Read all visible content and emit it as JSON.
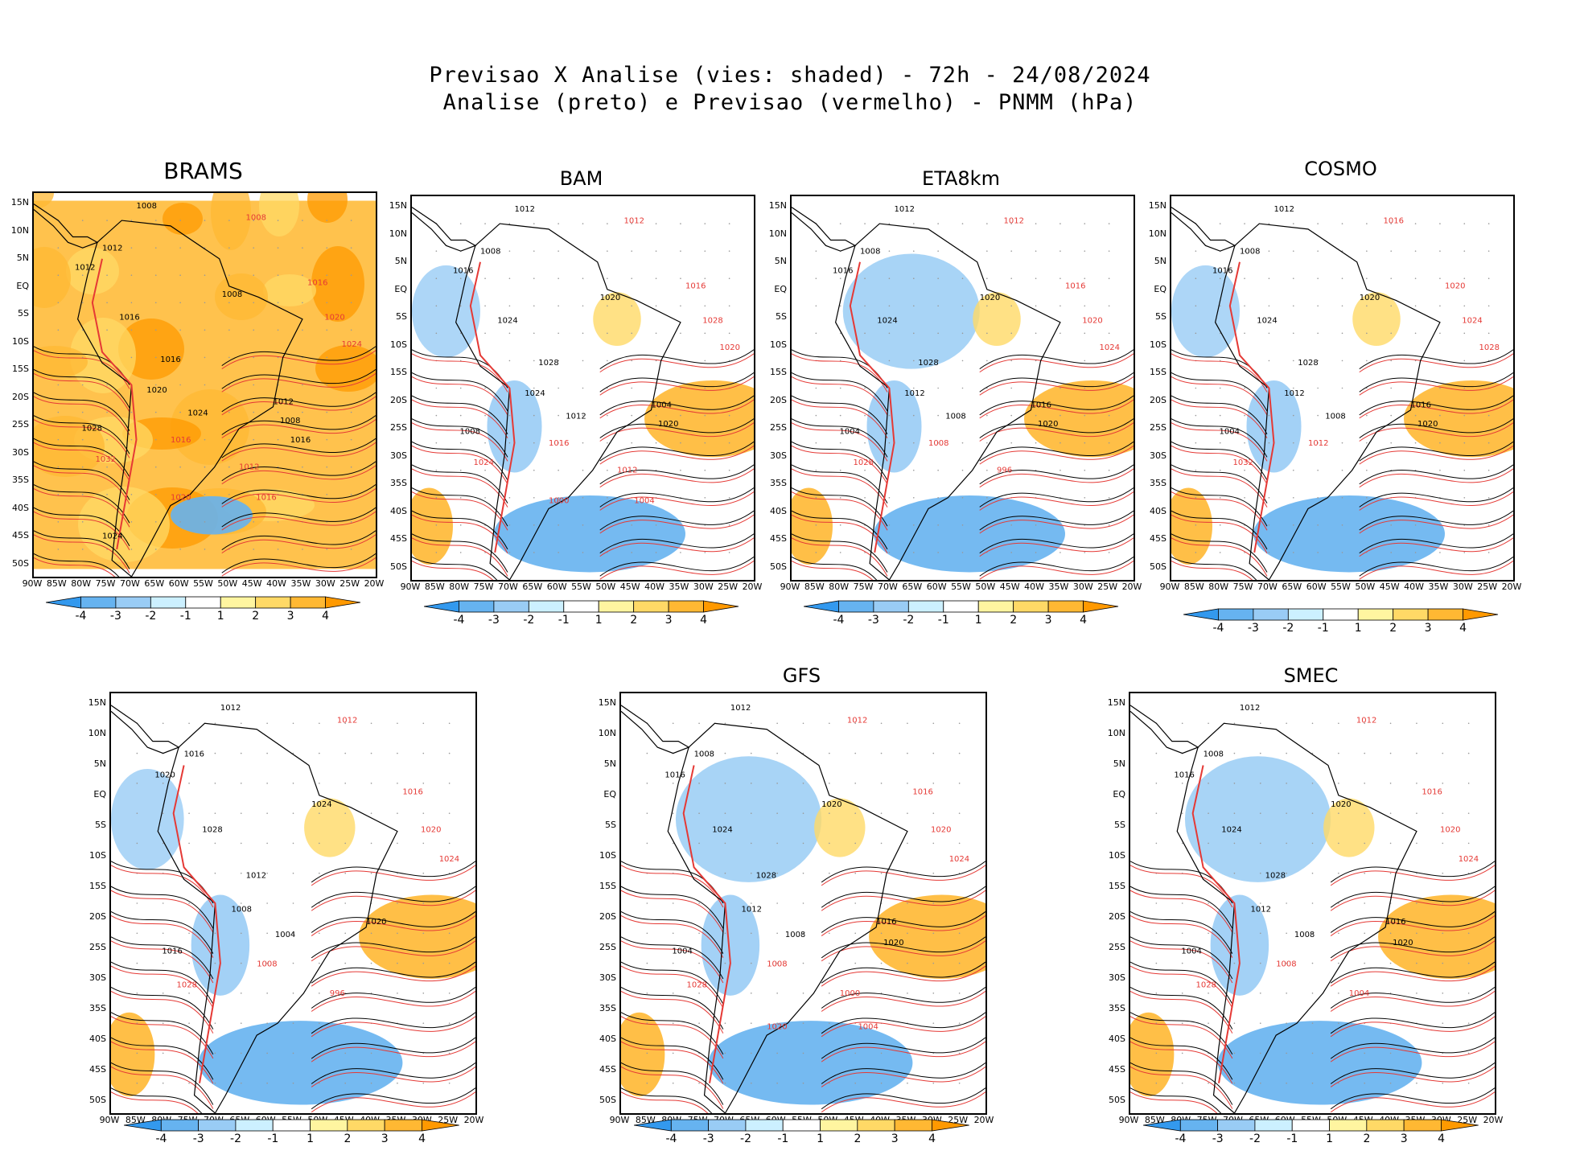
{
  "header": {
    "title_line1": "Previsao X Analise (vies: shaded) - 72h - 24/08/2024",
    "title_line2": "Analise (preto) e Previsao (vermelho) - PNMM (hPa)"
  },
  "axes": {
    "lat_labels": [
      "15N",
      "10N",
      "5N",
      "EQ",
      "5S",
      "10S",
      "15S",
      "20S",
      "25S",
      "30S",
      "35S",
      "40S",
      "45S",
      "50S"
    ],
    "lon_labels": [
      "90W",
      "85W",
      "80W",
      "75W",
      "70W",
      "65W",
      "60W",
      "55W",
      "50W",
      "45W",
      "40W",
      "35W",
      "30W",
      "25W",
      "20W"
    ]
  },
  "colorbar": {
    "labels": [
      "-4",
      "-3",
      "-2",
      "-1",
      "1",
      "2",
      "3",
      "4"
    ],
    "colors": [
      "#3399ee",
      "#66b3f0",
      "#99ccf5",
      "#ccf0ff",
      "#ffffff",
      "#fff5a0",
      "#ffd966",
      "#ffb833",
      "#ff9900"
    ]
  },
  "panels": [
    {
      "name": "BRAMS",
      "bias": "warm",
      "labels_black": [
        "1008",
        "1012",
        "1012",
        "1008",
        "1016",
        "1016",
        "1020",
        "1024",
        "1028",
        "1012",
        "1008",
        "1016",
        "1024"
      ],
      "labels_red": [
        "1008",
        "1016",
        "1020",
        "1024",
        "1032",
        "1016",
        "1012",
        "1016",
        "1020"
      ]
    },
    {
      "name": "BAM",
      "bias": "mixed",
      "labels_black": [
        "1012",
        "1008",
        "1016",
        "1020",
        "1024",
        "1028",
        "1024",
        "1012",
        "1008",
        "1004",
        "1020"
      ],
      "labels_red": [
        "1012",
        "1016",
        "1028",
        "1020",
        "1024",
        "1016",
        "1012",
        "1004",
        "1000"
      ]
    },
    {
      "name": "ETA8km",
      "bias": "cold",
      "labels_black": [
        "1012",
        "1008",
        "1016",
        "1020",
        "1024",
        "1028",
        "1012",
        "1008",
        "1004",
        "1016",
        "1020"
      ],
      "labels_red": [
        "1012",
        "1016",
        "1020",
        "1024",
        "1028",
        "1008",
        "996"
      ]
    },
    {
      "name": "COSMO",
      "bias": "mixed",
      "labels_black": [
        "1012",
        "1008",
        "1016",
        "1020",
        "1024",
        "1028",
        "1012",
        "1008",
        "1004",
        "1016",
        "1020"
      ],
      "labels_red": [
        "1016",
        "1020",
        "1024",
        "1028",
        "1032",
        "1012"
      ]
    },
    {
      "name": "",
      "bias": "mixed",
      "labels_black": [
        "1012",
        "1016",
        "1020",
        "1024",
        "1028",
        "1012",
        "1008",
        "1004",
        "1016",
        "1020"
      ],
      "labels_red": [
        "1012",
        "1016",
        "1020",
        "1024",
        "1028",
        "1008",
        "996"
      ]
    },
    {
      "name": "GFS",
      "bias": "cold",
      "labels_black": [
        "1012",
        "1008",
        "1016",
        "1020",
        "1024",
        "1028",
        "1012",
        "1008",
        "1004",
        "1016",
        "1020"
      ],
      "labels_red": [
        "1012",
        "1016",
        "1020",
        "1024",
        "1028",
        "1008",
        "1000",
        "1004",
        "1020"
      ]
    },
    {
      "name": "SMEC",
      "bias": "cold",
      "labels_black": [
        "1012",
        "1008",
        "1016",
        "1020",
        "1024",
        "1028",
        "1012",
        "1008",
        "1004",
        "1016",
        "1020"
      ],
      "labels_red": [
        "1012",
        "1016",
        "1020",
        "1024",
        "1028",
        "1008",
        "1004"
      ]
    }
  ]
}
